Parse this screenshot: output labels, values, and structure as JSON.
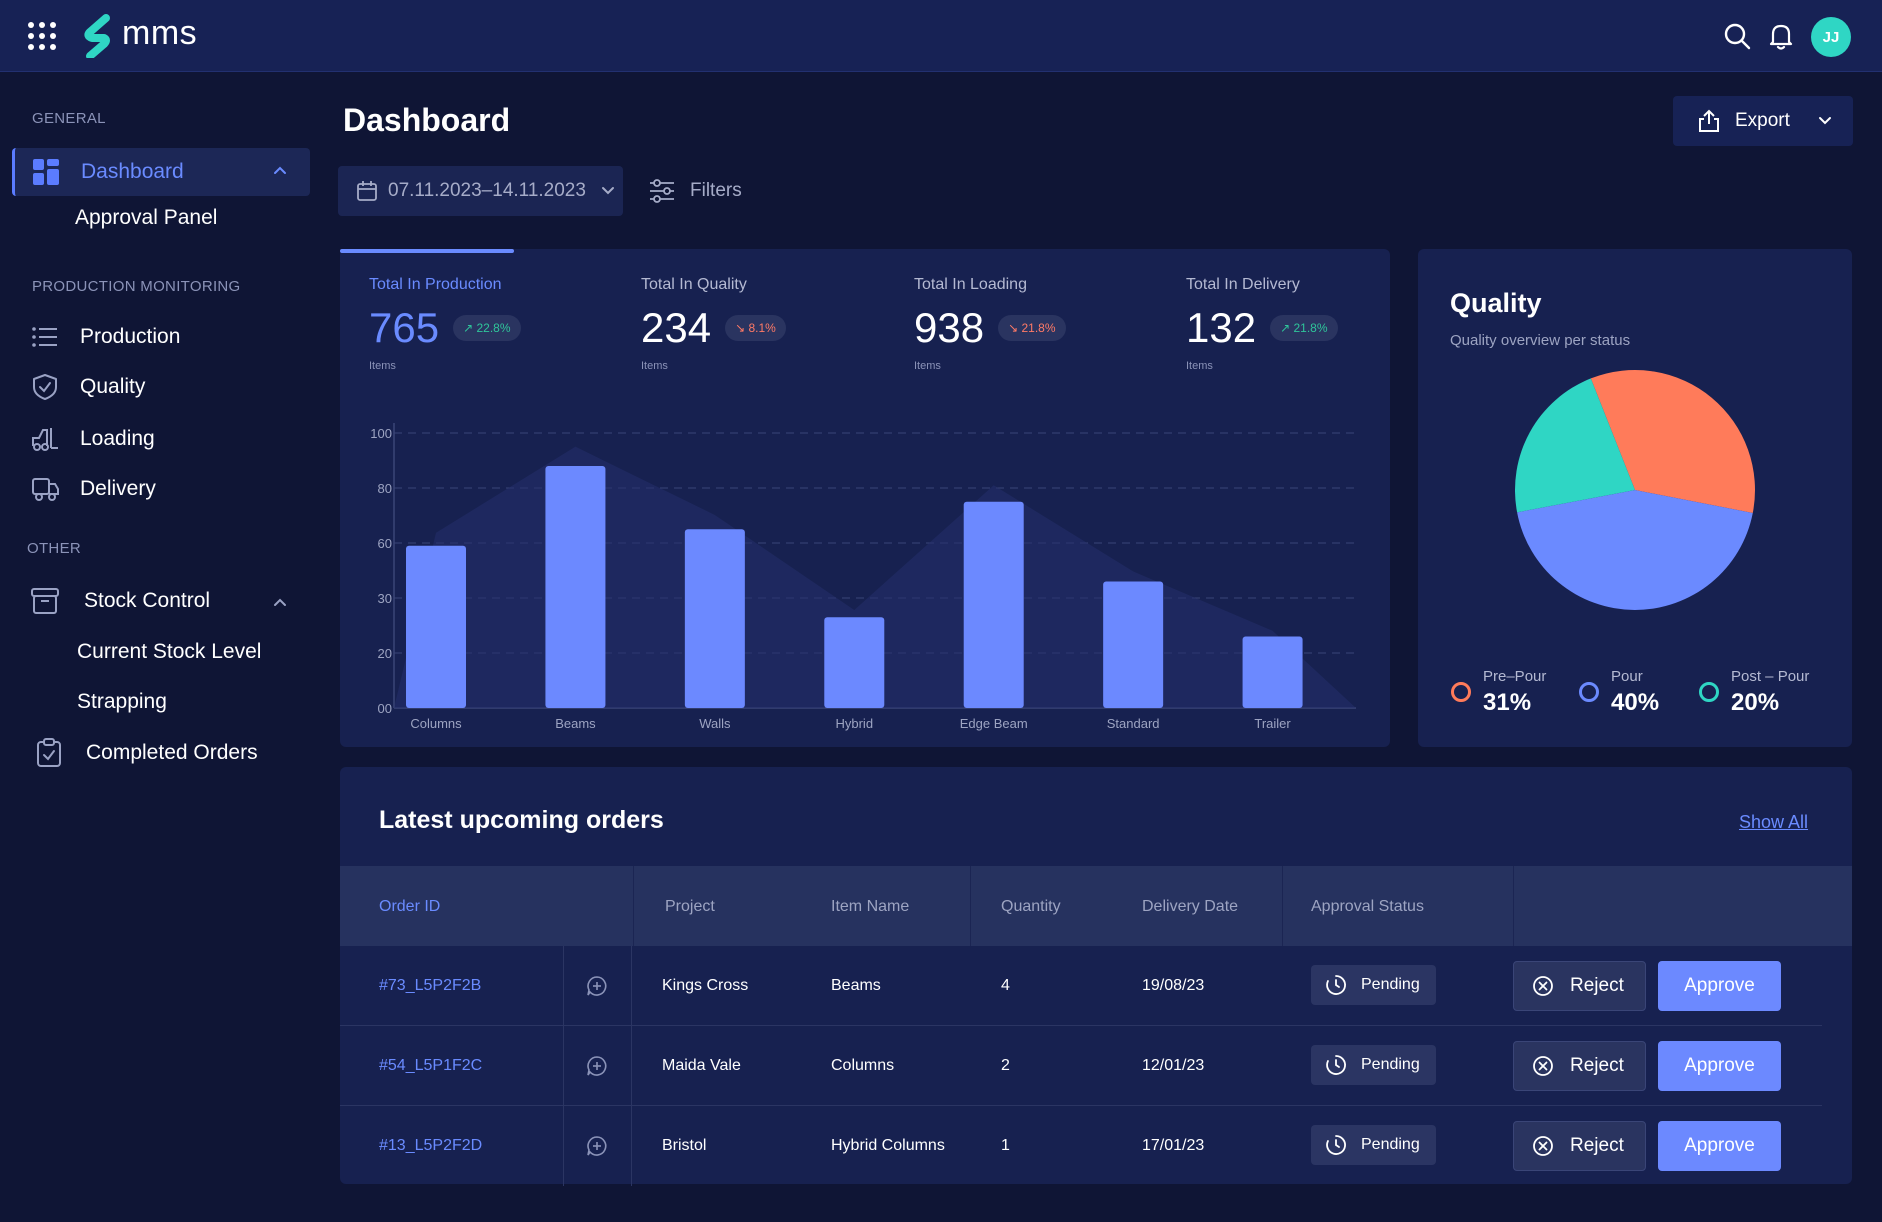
{
  "app": {
    "name": "mms",
    "user_initials": "JJ"
  },
  "topbar": {
    "icons": [
      "apps-grid-icon",
      "search-icon",
      "bell-icon"
    ]
  },
  "sidebar": {
    "general_title": "GENERAL",
    "dashboard_label": "Dashboard",
    "approval_panel_label": "Approval Panel",
    "production_monitoring_title": "PRODUCTION MONITORING",
    "production_label": "Production",
    "quality_label": "Quality",
    "loading_label": "Loading",
    "delivery_label": "Delivery",
    "other_title": "OTHER",
    "stock_control_label": "Stock Control",
    "current_stock_label": "Current Stock Level",
    "strapping_label": "Strapping",
    "completed_orders_label": "Completed Orders"
  },
  "header": {
    "title": "Dashboard",
    "export_label": "Export",
    "date_range": "07.11.2023–14.11.2023",
    "filters_label": "Filters"
  },
  "stats": [
    {
      "label": "Total In Production",
      "value": "765",
      "change": "22.8%",
      "trend": "up",
      "unit": "Items"
    },
    {
      "label": "Total In Quality",
      "value": "234",
      "change": "8.1%",
      "trend": "down",
      "unit": "Items"
    },
    {
      "label": "Total In Loading",
      "value": "938",
      "change": "21.8%",
      "trend": "down",
      "unit": "Items"
    },
    {
      "label": "Total In Delivery",
      "value": "132",
      "change": "21.8%",
      "trend": "up",
      "unit": "Items"
    }
  ],
  "chart_data": [
    {
      "type": "bar",
      "categories": [
        "Columns",
        "Beams",
        "Walls",
        "Hybrid",
        "Edge Beam",
        "Standard",
        "Trailer"
      ],
      "values": [
        59,
        88,
        65,
        33,
        75,
        46,
        26
      ],
      "y_ticks": [
        "100",
        "80",
        "60",
        "30",
        "20",
        "00"
      ],
      "grid": true,
      "bar_color": "#6c89ff"
    },
    {
      "type": "pie",
      "title": "Quality",
      "subtitle": "Quality overview per status",
      "slices": [
        {
          "name": "Pre–Pour",
          "label": "31%",
          "value": 31,
          "color": "#ff7b5a"
        },
        {
          "name": "Pour",
          "label": "40%",
          "value": 40,
          "color": "#6b8aff"
        },
        {
          "name": "Post – Pour",
          "label": "20%",
          "value": 20,
          "color": "#2fd6c4"
        }
      ],
      "legend_position": "bottom"
    }
  ],
  "orders": {
    "title": "Latest upcoming orders",
    "show_all": "Show All",
    "columns": [
      "Order ID",
      "Project",
      "Item Name",
      "Quantity",
      "Delivery Date",
      "Approval Status"
    ],
    "rows": [
      {
        "id": "#73_L5P2F2B",
        "project": "Kings Cross",
        "item": "Beams",
        "qty": "4",
        "date": "19/08/23",
        "status": "Pending"
      },
      {
        "id": "#54_L5P1F2C",
        "project": "Maida Vale",
        "item": "Columns",
        "qty": "2",
        "date": "12/01/23",
        "status": "Pending"
      },
      {
        "id": "#13_L5P2F2D",
        "project": "Bristol",
        "item": "Hybrid Columns",
        "qty": "1",
        "date": "17/01/23",
        "status": "Pending"
      }
    ],
    "reject_label": "Reject",
    "approve_label": "Approve"
  }
}
